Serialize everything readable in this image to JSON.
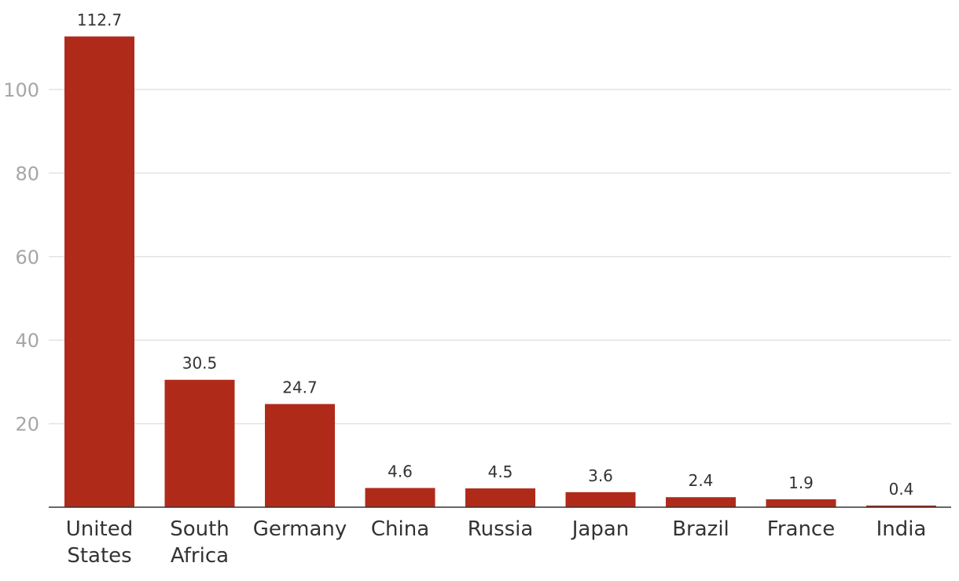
{
  "chart_data": {
    "type": "bar",
    "categories": [
      "United States",
      "South Africa",
      "Germany",
      "China",
      "Russia",
      "Japan",
      "Brazil",
      "France",
      "India"
    ],
    "category_lines": [
      [
        "United",
        "States"
      ],
      [
        "South",
        "Africa"
      ],
      [
        "Germany"
      ],
      [
        "China"
      ],
      [
        "Russia"
      ],
      [
        "Japan"
      ],
      [
        "Brazil"
      ],
      [
        "France"
      ],
      [
        "India"
      ]
    ],
    "values": [
      112.7,
      30.5,
      24.7,
      4.6,
      4.5,
      3.6,
      2.4,
      1.9,
      0.4
    ],
    "value_labels": [
      "112.7",
      "30.5",
      "24.7",
      "4.6",
      "4.5",
      "3.6",
      "2.4",
      "1.9",
      "0.4"
    ],
    "y_ticks": [
      20,
      40,
      60,
      80,
      100
    ],
    "y_tick_labels": [
      "20",
      "40",
      "60",
      "80",
      "100"
    ],
    "ylim": [
      0,
      115
    ],
    "grid": true,
    "bar_color": "#b02a1a",
    "title": "",
    "xlabel": "",
    "ylabel": ""
  }
}
